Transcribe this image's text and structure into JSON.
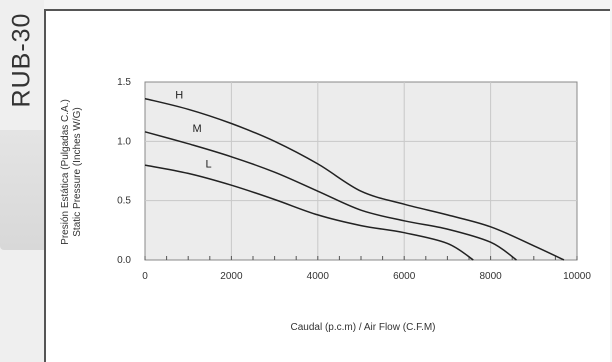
{
  "model_label": "RUB-30",
  "chart_data": {
    "type": "line",
    "title": "",
    "xlabel": "Caudal (p.c.m) / Air Flow (C.F.M)",
    "ylabel_lines": [
      "Presión Estática (Pulgadas C.A.)",
      "Static Pressure (Inches W/G)"
    ],
    "xlim": [
      0,
      10000
    ],
    "ylim": [
      0,
      1.5
    ],
    "x_ticks": [
      0,
      2000,
      4000,
      6000,
      8000,
      10000
    ],
    "y_ticks": [
      0.0,
      0.5,
      1.0,
      1.5
    ],
    "x_tick_labels": [
      "0",
      "2000",
      "4000",
      "6000",
      "8000",
      "10000"
    ],
    "y_tick_labels": [
      "0.0",
      "0.5",
      "1.0",
      "1.5"
    ],
    "grid": true,
    "series": [
      {
        "name": "H",
        "x": [
          0,
          1000,
          2000,
          3000,
          4000,
          5000,
          6000,
          7000,
          8000,
          9000,
          9700
        ],
        "y": [
          1.36,
          1.27,
          1.15,
          1.0,
          0.81,
          0.58,
          0.47,
          0.38,
          0.28,
          0.12,
          0.0
        ]
      },
      {
        "name": "M",
        "x": [
          0,
          1000,
          2000,
          3000,
          4000,
          5000,
          6000,
          7000,
          8000,
          8600
        ],
        "y": [
          1.08,
          0.98,
          0.87,
          0.74,
          0.58,
          0.42,
          0.33,
          0.26,
          0.15,
          0.0
        ]
      },
      {
        "name": "L",
        "x": [
          0,
          1000,
          2000,
          3000,
          4000,
          5000,
          6000,
          7000,
          7600
        ],
        "y": [
          0.8,
          0.73,
          0.63,
          0.51,
          0.38,
          0.29,
          0.23,
          0.14,
          0.0
        ]
      }
    ],
    "colors": {
      "curve": "#222222",
      "grid": "#c8c8c8",
      "plot_bg": "#ececec",
      "frame": "#888888"
    }
  }
}
